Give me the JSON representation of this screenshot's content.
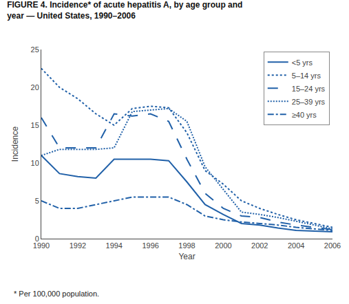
{
  "chart_data": {
    "type": "line",
    "title": "FIGURE 4. Incidence* of acute hepatitis A, by age group and year — United States, 1990–2006",
    "annotations": [
      "* Per 100,000 population."
    ],
    "x_label": "Year",
    "y_label": "Incidence",
    "color": "#2060A8",
    "x": [
      1990,
      1991,
      1992,
      1993,
      1994,
      1995,
      1996,
      1997,
      1998,
      1999,
      2000,
      2001,
      2002,
      2003,
      2004,
      2005,
      2006
    ],
    "series": [
      {
        "name": "<5 yrs",
        "line_style": "solid",
        "values": [
          11.0,
          8.6,
          8.2,
          8.0,
          10.5,
          10.5,
          10.5,
          10.3,
          7.5,
          4.5,
          3.2,
          2.0,
          1.8,
          1.4,
          1.1,
          1.0,
          0.9
        ]
      },
      {
        "name": "5–14 yrs",
        "line_style": "loosedot",
        "values": [
          22.5,
          20.0,
          18.5,
          16.5,
          15.0,
          17.2,
          17.5,
          17.3,
          14.0,
          9.0,
          7.2,
          5.0,
          4.0,
          3.2,
          2.5,
          2.0,
          1.5
        ]
      },
      {
        "name": "15–24 yrs",
        "line_style": "longdash",
        "values": [
          16.0,
          12.0,
          12.0,
          12.0,
          16.5,
          16.2,
          16.5,
          15.5,
          10.5,
          6.0,
          4.0,
          3.0,
          2.8,
          2.2,
          1.8,
          1.5,
          1.2
        ]
      },
      {
        "name": "25–39 yrs",
        "line_style": "densedot",
        "values": [
          11.0,
          11.8,
          11.8,
          11.8,
          12.0,
          16.8,
          17.0,
          17.2,
          15.5,
          9.5,
          6.5,
          3.5,
          3.2,
          2.8,
          2.3,
          1.8,
          1.3
        ]
      },
      {
        "name": "≥40 yrs",
        "line_style": "dashdot",
        "values": [
          5.0,
          4.0,
          4.0,
          4.5,
          5.0,
          5.5,
          5.5,
          5.5,
          4.5,
          3.0,
          2.5,
          2.2,
          2.0,
          1.8,
          1.5,
          1.3,
          1.1
        ]
      }
    ],
    "xlim": [
      1990,
      2006
    ],
    "xticks": [
      1990,
      1992,
      1994,
      1996,
      1998,
      2000,
      2002,
      2004,
      2006
    ],
    "ylim": [
      0,
      25
    ],
    "yticks": [
      0,
      5,
      10,
      15,
      20,
      25
    ],
    "grid": false,
    "legend": "upper right"
  }
}
